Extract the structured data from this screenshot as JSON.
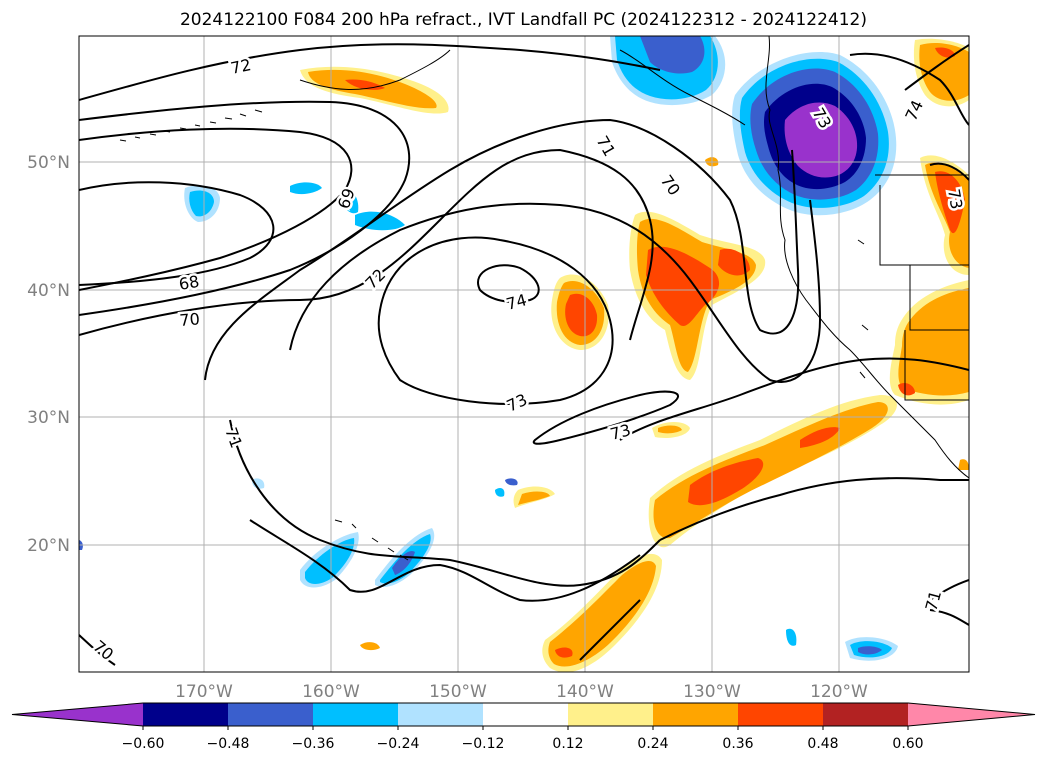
{
  "title": "2024122100 F084 200 hPa refract., IVT Landfall PC (2024122312 - 2024122412)",
  "map": {
    "lat_labels": [
      "50°N",
      "40°N",
      "30°N",
      "20°N"
    ],
    "lon_labels": [
      "170°W",
      "160°W",
      "150°W",
      "140°W",
      "130°W",
      "120°W"
    ],
    "contour_labels": [
      "72",
      "69",
      "68",
      "70",
      "72",
      "74",
      "71",
      "70",
      "73",
      "73",
      "71",
      "70",
      "74",
      "73",
      "71",
      "73"
    ]
  },
  "colorbar": {
    "tick_labels": [
      "−0.60",
      "−0.48",
      "−0.36",
      "−0.24",
      "−0.12",
      "0.12",
      "0.24",
      "0.36",
      "0.48",
      "0.60"
    ],
    "colors": [
      "#9932cc",
      "#00008b",
      "#3a5fcd",
      "#00bfff",
      "#b0e2ff",
      "#ffffff",
      "#fff08b",
      "#ffa500",
      "#ff4500",
      "#b22222",
      "#ff87a9"
    ]
  }
}
